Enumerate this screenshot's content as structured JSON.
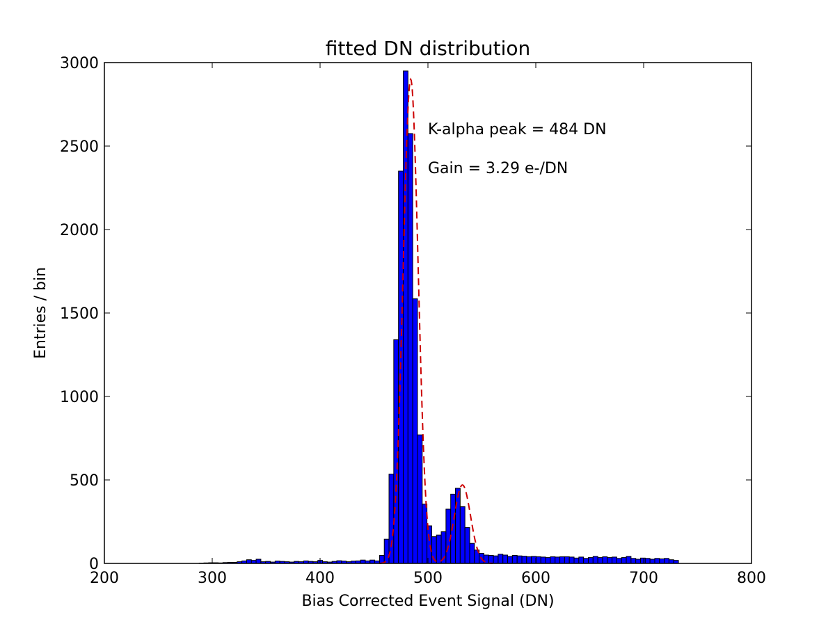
{
  "chart_data": {
    "type": "bar",
    "title": "fitted DN distribution",
    "xlabel": "Bias Corrected Event Signal (DN)",
    "ylabel": "Entries / bin",
    "xlim": [
      200,
      800
    ],
    "ylim": [
      0,
      3000
    ],
    "xticks": [
      200,
      300,
      400,
      500,
      600,
      700,
      800
    ],
    "yticks": [
      0,
      500,
      1000,
      1500,
      2000,
      2500,
      3000
    ],
    "grid": false,
    "bar_color": "#0000ff",
    "fit_color": "#cc0000",
    "bin_width": 4.4,
    "bin_left_edges": [
      287.9,
      292.3,
      296.7,
      301.1,
      305.5,
      309.9,
      314.3,
      318.7,
      323.1,
      327.5,
      331.9,
      336.3,
      340.7,
      345.1,
      349.5,
      353.9,
      358.3,
      362.7,
      367.1,
      371.5,
      375.9,
      380.3,
      384.7,
      389.1,
      393.5,
      397.9,
      402.3,
      406.7,
      411.1,
      415.5,
      419.9,
      424.3,
      428.7,
      433.1,
      437.5,
      441.9,
      446.3,
      450.7,
      455.1,
      459.5,
      463.9,
      468.3,
      472.7,
      477.1,
      481.5,
      485.9,
      490.3,
      494.7,
      499.1,
      503.5,
      507.9,
      512.3,
      516.7,
      521.1,
      525.5,
      529.9,
      534.3,
      538.7,
      543.1,
      547.5,
      551.9,
      556.3,
      560.7,
      565.1,
      569.5,
      573.9,
      578.3,
      582.7,
      587.1,
      591.5,
      595.9,
      600.3,
      604.7,
      609.1,
      613.5,
      617.9,
      622.3,
      626.7,
      631.1,
      635.5,
      639.9,
      644.3,
      648.7,
      653.1,
      657.5,
      661.9,
      666.3,
      670.7,
      675.1,
      679.5,
      683.9,
      688.3,
      692.7,
      697.1,
      701.5,
      705.9,
      710.3,
      714.7,
      719.1,
      723.5,
      727.9
    ],
    "values": [
      2,
      3,
      4,
      4,
      3,
      5,
      6,
      6,
      10,
      15,
      22,
      18,
      25,
      10,
      12,
      8,
      14,
      12,
      10,
      8,
      12,
      10,
      15,
      12,
      10,
      18,
      10,
      8,
      12,
      16,
      14,
      10,
      14,
      15,
      20,
      15,
      20,
      15,
      48,
      145,
      535,
      1340,
      2350,
      2950,
      2575,
      1585,
      770,
      355,
      225,
      160,
      170,
      190,
      325,
      415,
      450,
      340,
      215,
      120,
      80,
      60,
      50,
      48,
      45,
      55,
      50,
      42,
      48,
      45,
      43,
      40,
      42,
      40,
      38,
      35,
      40,
      38,
      40,
      40,
      38,
      32,
      38,
      30,
      35,
      42,
      35,
      40,
      35,
      38,
      30,
      35,
      42,
      30,
      25,
      32,
      30,
      25,
      30,
      27,
      30,
      22,
      18
    ]
  },
  "annotations": {
    "peak_text": "K-alpha peak = 484 DN",
    "gain_text": "Gain = 3.29 e-/DN"
  }
}
